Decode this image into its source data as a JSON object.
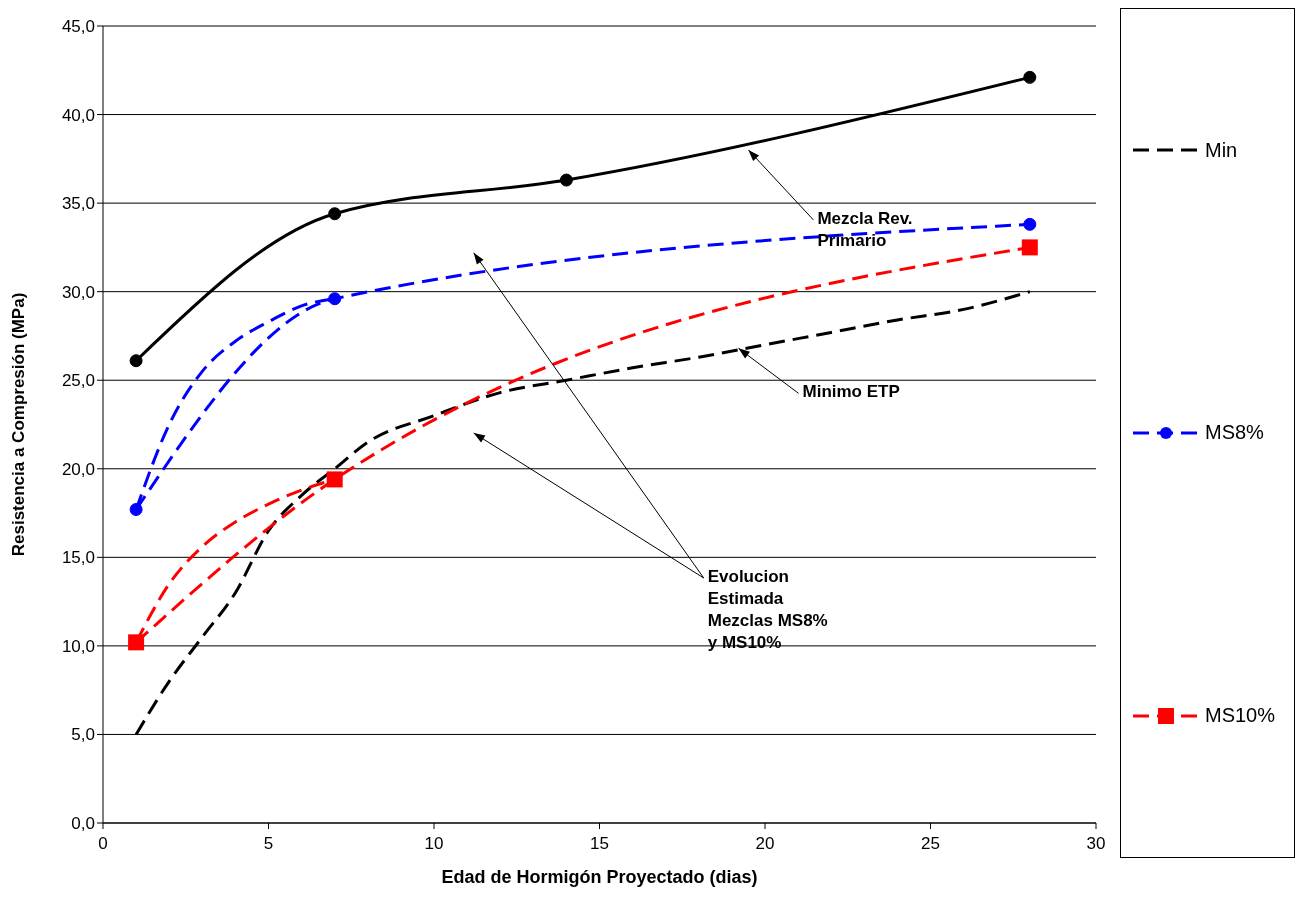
{
  "chart_data": {
    "type": "line",
    "xlabel": "Edad de Hormigón Proyectado (dias)",
    "ylabel": "Resistencia a Compresión (MPa)",
    "xlim": [
      0,
      30
    ],
    "xticks": [
      0,
      5,
      10,
      15,
      20,
      25,
      30
    ],
    "ylim": [
      0,
      45
    ],
    "yticks": [
      {
        "value": 0,
        "label": "0,0"
      },
      {
        "value": 5,
        "label": "5,0"
      },
      {
        "value": 10,
        "label": "10,0"
      },
      {
        "value": 15,
        "label": "15,0"
      },
      {
        "value": 20,
        "label": "20,0"
      },
      {
        "value": 25,
        "label": "25,0"
      },
      {
        "value": 30,
        "label": "30,0"
      },
      {
        "value": 35,
        "label": "35,0"
      },
      {
        "value": 40,
        "label": "40,0"
      },
      {
        "value": 45,
        "label": "45,0"
      }
    ],
    "grid": "y",
    "legend": "right",
    "series": [
      {
        "name": "Min",
        "color": "#000000",
        "marker": "none",
        "line_style": "dashed",
        "x": [
          1,
          2,
          3,
          4,
          5,
          6,
          7,
          8,
          10,
          12,
          14,
          16,
          18,
          20,
          22,
          24,
          26,
          28
        ],
        "values": [
          5,
          8,
          10.5,
          13,
          16.5,
          18.5,
          20,
          21.5,
          23,
          24.3,
          25,
          25.7,
          26.3,
          27,
          27.7,
          28.4,
          29,
          30
        ]
      },
      {
        "color": "#000000",
        "marker": "circle",
        "line_style": "solid",
        "x": [
          1,
          7,
          14,
          28
        ],
        "values": [
          26.1,
          34.4,
          36.3,
          42.1
        ]
      },
      {
        "name": "MS8%",
        "color": "#0000ff",
        "marker": "circle",
        "line_style": "dashed",
        "x": [
          1,
          7,
          28
        ],
        "values": [
          17.7,
          29.6,
          33.8
        ]
      },
      {
        "color": "#0000ff",
        "marker": "none",
        "line_style": "dashed",
        "x": [
          1,
          2,
          3,
          4,
          5,
          6,
          7
        ],
        "values": [
          17.7,
          22.5,
          25.5,
          27.2,
          28.3,
          29.2,
          29.6
        ]
      },
      {
        "name": "MS10%",
        "color": "#ff0000",
        "marker": "square",
        "line_style": "dashed",
        "x": [
          1,
          7,
          28
        ],
        "values": [
          10.2,
          19.4,
          32.5
        ]
      },
      {
        "color": "#ff0000",
        "marker": "none",
        "line_style": "dashed",
        "x": [
          1,
          2,
          3,
          4,
          5,
          6,
          7
        ],
        "values": [
          10.2,
          13.5,
          15.6,
          17,
          18,
          18.8,
          19.4
        ]
      }
    ],
    "annotations": [
      {
        "text": "Mezcla Rev.\nPrimario",
        "x": 19.5,
        "y": 38
      },
      {
        "text": "Minimo ETP",
        "x": 19.2,
        "y": 26.8
      },
      "Evolucion\nEstimada\nMezclas MS8%\ny MS10%"
    ]
  }
}
